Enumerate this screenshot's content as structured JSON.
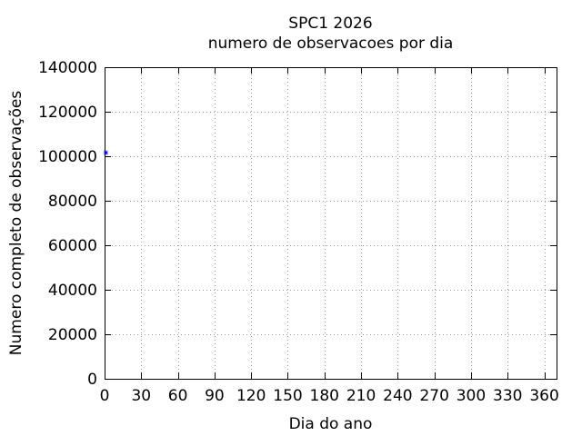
{
  "chart_data": {
    "type": "scatter",
    "title": "SPC1 2026",
    "subtitle": "numero de observacoes por dia",
    "xlabel": "Dia do ano",
    "ylabel": "Numero completo de observações",
    "xlim": [
      0,
      370
    ],
    "ylim": [
      0,
      140000
    ],
    "x_ticks": [
      0,
      30,
      60,
      90,
      120,
      150,
      180,
      210,
      240,
      270,
      300,
      330,
      360
    ],
    "y_ticks": [
      0,
      20000,
      40000,
      60000,
      80000,
      100000,
      120000,
      140000
    ],
    "grid": "dotted",
    "legend": "none",
    "series": [
      {
        "name": "observacoes",
        "marker": "small-square",
        "color": "#0000ff",
        "points": [
          {
            "x": 1,
            "y": 101600
          }
        ]
      }
    ],
    "colors": {
      "background": "#ffffff",
      "axis": "#000000",
      "grid": "#9a9a9a",
      "text": "#000000",
      "point": "#0000ff"
    }
  }
}
